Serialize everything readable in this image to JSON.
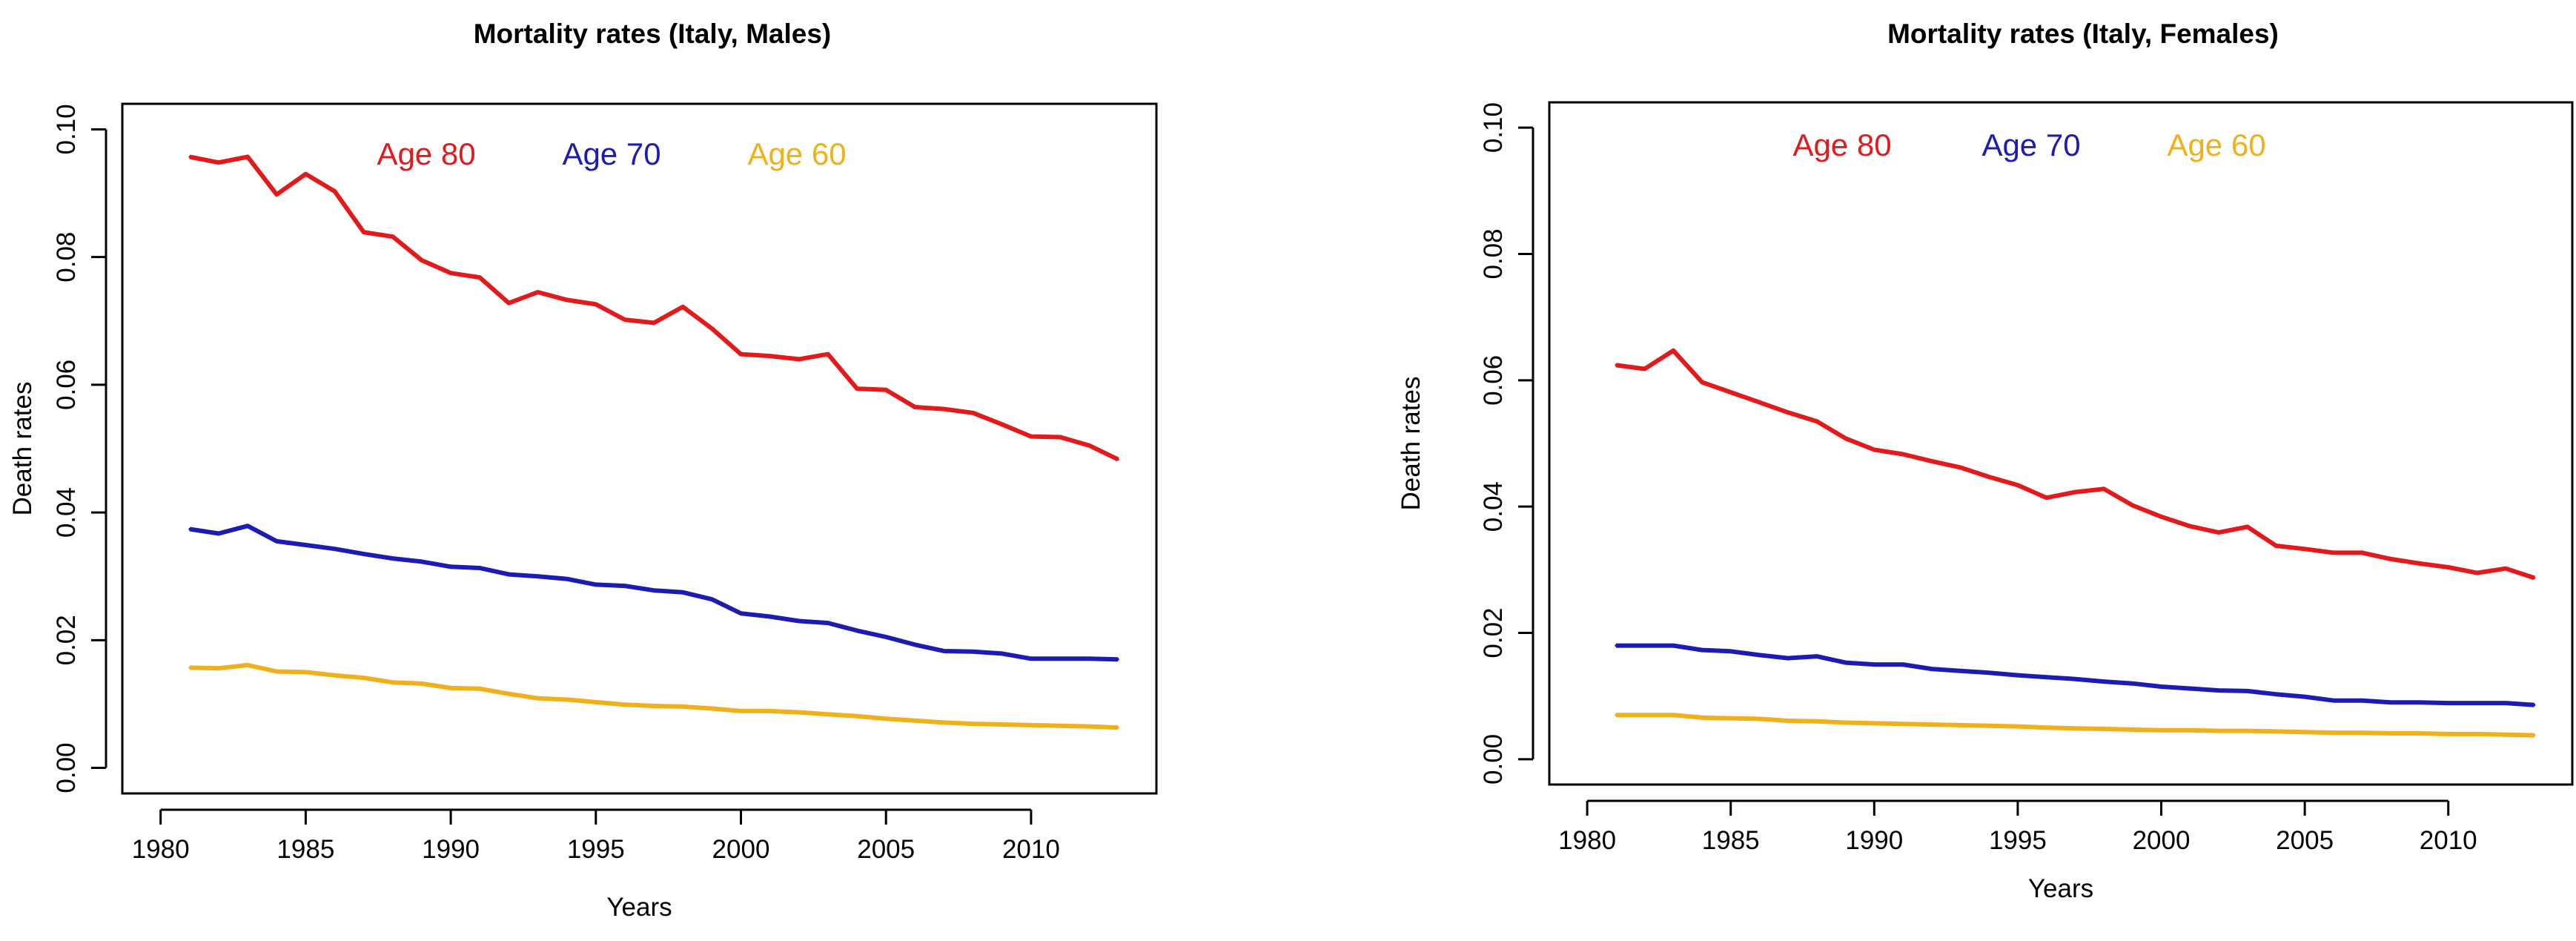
{
  "chart_data": [
    {
      "type": "line",
      "title": "Mortality rates (Italy, Males)",
      "xlabel": "Years",
      "ylabel": "Death rates",
      "xlim": [
        1980,
        2013
      ],
      "ylim": [
        0,
        0.1
      ],
      "xticks": [
        1980,
        1985,
        1990,
        1995,
        2000,
        2005,
        2010
      ],
      "xtick_labels": [
        "1980",
        "1985",
        "1990",
        "1995",
        "2000",
        "2005",
        "2010"
      ],
      "yticks": [
        0,
        0.02,
        0.04,
        0.06,
        0.08,
        0.1
      ],
      "ytick_labels": [
        "0.00",
        "0.02",
        "0.04",
        "0.06",
        "0.08",
        "0.10"
      ],
      "legend_position": "top-center",
      "x": [
        1981,
        1982,
        1983,
        1984,
        1985,
        1986,
        1987,
        1988,
        1989,
        1990,
        1991,
        1992,
        1993,
        1994,
        1995,
        1996,
        1997,
        1998,
        1999,
        2000,
        2001,
        2002,
        2003,
        2004,
        2005,
        2006,
        2007,
        2008,
        2009,
        2010,
        2011,
        2012,
        2013
      ],
      "series": [
        {
          "name": "Age 80",
          "color": "#e31a1c",
          "values": [
            0.0957,
            0.0948,
            0.0957,
            0.0898,
            0.093,
            0.0903,
            0.0839,
            0.0832,
            0.0795,
            0.0775,
            0.0768,
            0.0728,
            0.0745,
            0.0733,
            0.0726,
            0.0702,
            0.0697,
            0.0722,
            0.0688,
            0.0648,
            0.0645,
            0.064,
            0.0648,
            0.0594,
            0.0592,
            0.0565,
            0.0562,
            0.0556,
            0.0538,
            0.0519,
            0.0518,
            0.0505,
            0.0483
          ]
        },
        {
          "name": "Age 70",
          "color": "#1c1cb4",
          "values": [
            0.0374,
            0.0367,
            0.0379,
            0.0355,
            0.0349,
            0.0343,
            0.0335,
            0.0328,
            0.0323,
            0.0315,
            0.0313,
            0.0303,
            0.03,
            0.0296,
            0.0287,
            0.0285,
            0.0278,
            0.0275,
            0.0264,
            0.0242,
            0.0237,
            0.023,
            0.0227,
            0.0215,
            0.0205,
            0.0193,
            0.0183,
            0.0182,
            0.0179,
            0.0171,
            0.0171,
            0.0171,
            0.017
          ]
        },
        {
          "name": "Age 60",
          "color": "#f0b01a",
          "values": [
            0.0157,
            0.0156,
            0.0161,
            0.0151,
            0.015,
            0.0145,
            0.0141,
            0.0134,
            0.0132,
            0.0125,
            0.0124,
            0.0116,
            0.0109,
            0.0107,
            0.0103,
            0.0099,
            0.0097,
            0.0096,
            0.0093,
            0.0089,
            0.0089,
            0.0087,
            0.0084,
            0.0081,
            0.0077,
            0.0074,
            0.0071,
            0.0069,
            0.0068,
            0.0067,
            0.0066,
            0.0065,
            0.0063
          ]
        }
      ]
    },
    {
      "type": "line",
      "title": "Mortality rates (Italy, Females)",
      "xlabel": "Years",
      "ylabel": "Death rates",
      "xlim": [
        1980,
        2013
      ],
      "ylim": [
        0,
        0.1
      ],
      "xticks": [
        1980,
        1985,
        1990,
        1995,
        2000,
        2005,
        2010
      ],
      "xtick_labels": [
        "1980",
        "1985",
        "1990",
        "1995",
        "2000",
        "2005",
        "2010"
      ],
      "yticks": [
        0,
        0.02,
        0.04,
        0.06,
        0.08,
        0.1
      ],
      "ytick_labels": [
        "0.00",
        "0.02",
        "0.04",
        "0.06",
        "0.08",
        "0.10"
      ],
      "legend_position": "top-center",
      "x": [
        1981,
        1982,
        1983,
        1984,
        1985,
        1986,
        1987,
        1988,
        1989,
        1990,
        1991,
        1992,
        1993,
        1994,
        1995,
        1996,
        1997,
        1998,
        1999,
        2000,
        2001,
        2002,
        2003,
        2004,
        2005,
        2006,
        2007,
        2008,
        2009,
        2010,
        2011,
        2012,
        2013
      ],
      "series": [
        {
          "name": "Age 80",
          "color": "#e31a1c",
          "values": [
            0.0624,
            0.0618,
            0.0647,
            0.0597,
            0.0581,
            0.0565,
            0.0549,
            0.0535,
            0.0508,
            0.049,
            0.0483,
            0.0472,
            0.0462,
            0.0447,
            0.0434,
            0.0414,
            0.0423,
            0.0428,
            0.0402,
            0.0384,
            0.0369,
            0.0359,
            0.0368,
            0.0338,
            0.0333,
            0.0327,
            0.0327,
            0.0317,
            0.031,
            0.0304,
            0.0295,
            0.0302,
            0.0287
          ]
        },
        {
          "name": "Age 70",
          "color": "#1c1cb4",
          "values": [
            0.018,
            0.018,
            0.018,
            0.0173,
            0.0171,
            0.0165,
            0.016,
            0.0163,
            0.0153,
            0.015,
            0.015,
            0.0143,
            0.014,
            0.0137,
            0.0133,
            0.013,
            0.0127,
            0.0123,
            0.012,
            0.0115,
            0.0112,
            0.0109,
            0.0108,
            0.0103,
            0.0099,
            0.0093,
            0.0093,
            0.009,
            0.009,
            0.0089,
            0.0089,
            0.0089,
            0.0086
          ]
        },
        {
          "name": "Age 60",
          "color": "#f0b01a",
          "values": [
            0.007,
            0.007,
            0.007,
            0.0066,
            0.0065,
            0.0064,
            0.0061,
            0.006,
            0.0058,
            0.0057,
            0.0056,
            0.0055,
            0.0054,
            0.0053,
            0.0052,
            0.005,
            0.0049,
            0.0048,
            0.0047,
            0.0046,
            0.0046,
            0.0045,
            0.0045,
            0.0044,
            0.0043,
            0.0042,
            0.0042,
            0.0041,
            0.0041,
            0.004,
            0.004,
            0.0039,
            0.0038
          ]
        }
      ]
    }
  ]
}
